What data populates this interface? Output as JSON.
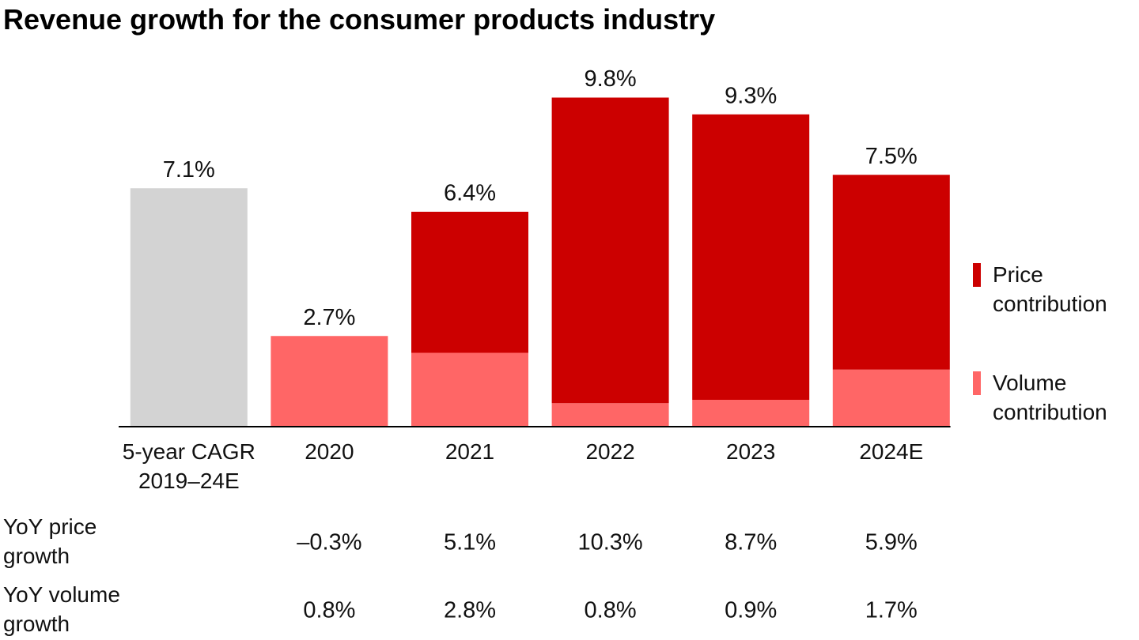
{
  "chart_data": {
    "type": "stacked_bar",
    "title": "Revenue growth for the consumer products industry",
    "categories": [
      "5-year CAGR 2019–24E",
      "2020",
      "2021",
      "2022",
      "2023",
      "2024E"
    ],
    "series": [
      {
        "name": "Volume contribution",
        "color": "#ff6666",
        "values": [
          null,
          2.7,
          2.2,
          0.7,
          0.8,
          1.7
        ]
      },
      {
        "name": "Price contribution",
        "color": "#cc0000",
        "values": [
          null,
          null,
          4.2,
          9.1,
          8.5,
          5.8
        ]
      }
    ],
    "totals": {
      "color": "#d3d3d3",
      "values": [
        7.1,
        2.7,
        6.4,
        9.8,
        9.3,
        7.5
      ],
      "value_labels": [
        "7.1%",
        "2.7%",
        "6.4%",
        "9.8%",
        "9.3%",
        "7.5%"
      ]
    },
    "ylim": [
      0,
      10
    ],
    "table": {
      "rows": [
        {
          "label": "YoY price growth",
          "values": [
            -0.3,
            5.1,
            10.3,
            8.7,
            5.9
          ],
          "value_labels": [
            "–0.3%",
            "5.1%",
            "10.3%",
            "8.7%",
            "5.9%"
          ]
        },
        {
          "label": "YoY volume growth",
          "values": [
            0.8,
            2.8,
            0.8,
            0.9,
            1.7
          ],
          "value_labels": [
            "0.8%",
            "2.8%",
            "0.8%",
            "0.9%",
            "1.7%"
          ]
        }
      ]
    }
  }
}
